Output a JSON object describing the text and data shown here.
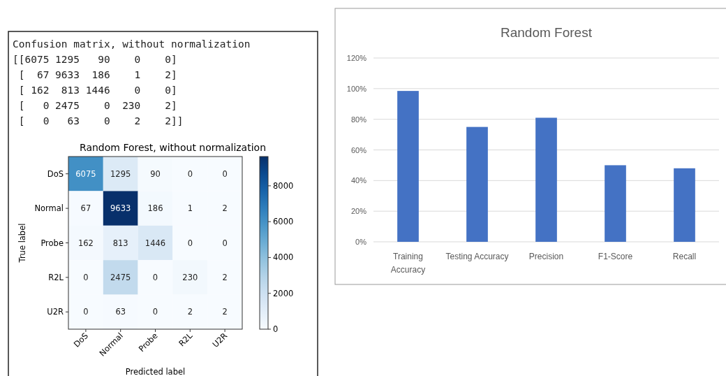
{
  "chart_data": [
    {
      "type": "heatmap",
      "title": "Random Forest, without normalization",
      "xlabel": "Predicted label",
      "ylabel": "True label",
      "categories": [
        "DoS",
        "Normal",
        "Probe",
        "R2L",
        "U2R"
      ],
      "y_categories": [
        "DoS",
        "Normal",
        "Probe",
        "R2L",
        "U2R"
      ],
      "cells": [
        [
          6075,
          1295,
          90,
          0,
          0
        ],
        [
          67,
          9633,
          186,
          1,
          2
        ],
        [
          162,
          813,
          1446,
          0,
          0
        ],
        [
          0,
          2475,
          0,
          230,
          2
        ],
        [
          0,
          63,
          0,
          2,
          2
        ]
      ],
      "data_labels": true,
      "clim": [
        0,
        9633
      ],
      "cticks": [
        0,
        2000,
        4000,
        6000,
        8000
      ],
      "annotations": [
        "Confusion matrix, without normalization",
        "[[6075 1295   90    0    0]",
        " [  67 9633  186    1    2]",
        " [ 162  813 1446    0    0]",
        " [   0 2475    0  230    2]",
        " [   0   63    0    2    2]]"
      ]
    },
    {
      "type": "bar",
      "title": "Random Forest",
      "categories": [
        "Training Accuracy",
        "Testing Accuracy",
        "Precision",
        "F1-Score",
        "Recall"
      ],
      "values": [
        98.5,
        75,
        81,
        50,
        48
      ],
      "color": "#4472c4",
      "ylim": [
        0,
        120
      ],
      "yticks": [
        {
          "value": 0,
          "label": "0%"
        },
        {
          "value": 20,
          "label": "20%"
        },
        {
          "value": 40,
          "label": "40%"
        },
        {
          "value": 60,
          "label": "60%"
        },
        {
          "value": 80,
          "label": "80%"
        },
        {
          "value": 100,
          "label": "100%"
        },
        {
          "value": 120,
          "label": "120%"
        }
      ],
      "grid": "y"
    }
  ]
}
